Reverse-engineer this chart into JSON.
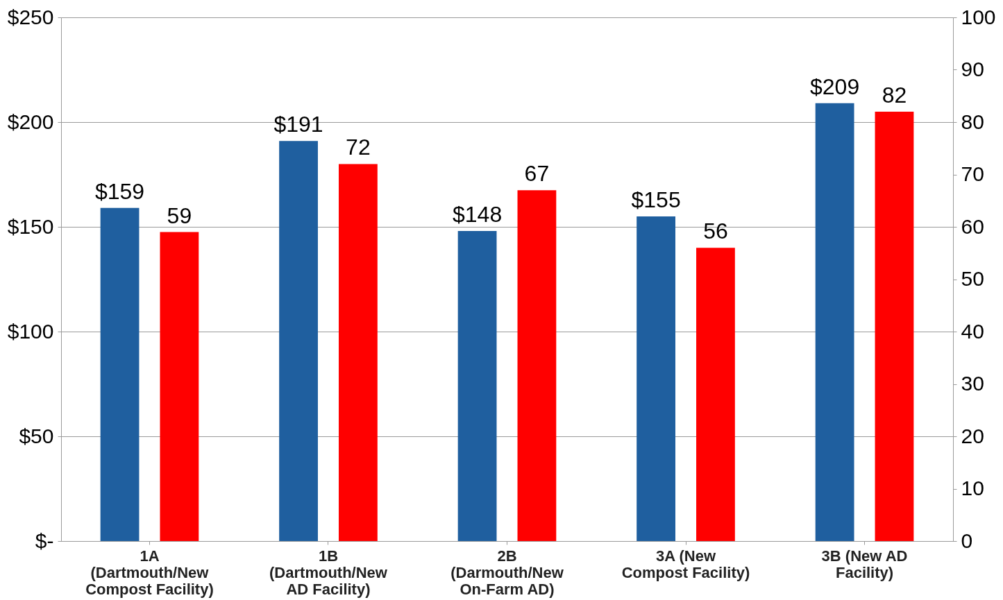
{
  "chart_data": {
    "type": "bar",
    "categories": [
      "1A\n(Dartmouth/New\nCompost Facility)",
      "1B\n(Dartmouth/New\nAD Facility)",
      "2B\n(Darmouth/New\nOn-Farm AD)",
      "3A (New\nCompost Facility)",
      "3B (New AD\nFacility)"
    ],
    "series": [
      {
        "color": "#1f5f9f",
        "values": [
          159,
          191,
          148,
          155,
          209
        ],
        "value_labels": [
          "$159",
          "$191",
          "$148",
          "$155",
          "$209"
        ]
      },
      {
        "color": "#ff0000",
        "axis": "y2",
        "values": [
          59,
          72,
          67,
          56,
          82
        ],
        "value_labels": [
          "59",
          "72",
          "67",
          "56",
          "82"
        ]
      }
    ],
    "ylim": [
      0,
      250
    ],
    "yticks": [
      {
        "value": 0,
        "label": "$-"
      },
      {
        "value": 50,
        "label": "$50"
      },
      {
        "value": 100,
        "label": "$100"
      },
      {
        "value": 150,
        "label": "$150"
      },
      {
        "value": 200,
        "label": "$200"
      },
      {
        "value": 250,
        "label": "$250"
      }
    ],
    "y2lim": [
      0,
      100
    ],
    "y2ticks": [
      0,
      10,
      20,
      30,
      40,
      50,
      60,
      70,
      80,
      90,
      100
    ],
    "grid": "y"
  }
}
